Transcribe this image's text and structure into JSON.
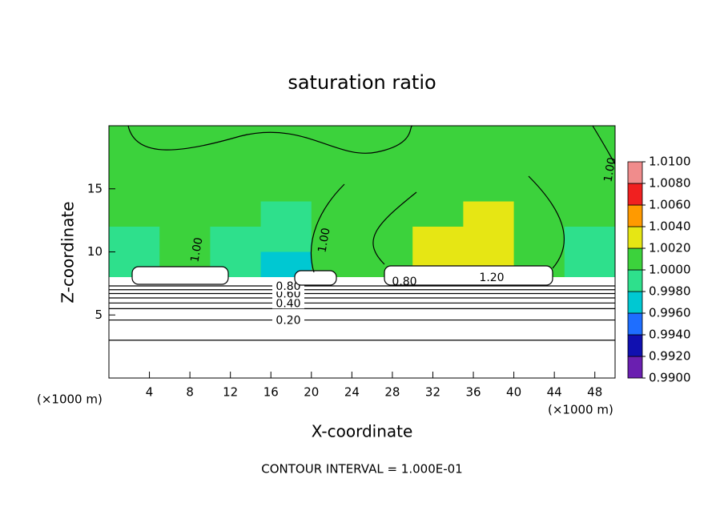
{
  "chart_data": {
    "type": "contour",
    "title": "saturation ratio",
    "x_label": "X-coordinate",
    "y_label": "Z-coordinate",
    "x_unit_label": "(×1000 m)",
    "x_unit_label_right": "(×1000 m)",
    "footnote": "CONTOUR INTERVAL = 1.000E-01",
    "xlim": [
      0,
      50
    ],
    "ylim": [
      0,
      20
    ],
    "xticks": [
      4,
      8,
      12,
      16,
      20,
      24,
      28,
      32,
      36,
      40,
      44,
      48
    ],
    "yticks": [
      5,
      10,
      15
    ],
    "x": [
      2.5,
      7.5,
      12.5,
      17.5,
      22.5,
      27.5,
      32.5,
      37.5,
      42.5,
      47.5
    ],
    "z_levels": [
      19,
      17,
      15,
      13,
      11,
      9,
      7,
      5,
      3,
      1
    ],
    "z": [
      [
        1.0005,
        1.0002,
        1.0006,
        1.0004,
        1.0003,
        1.0006,
        1.0008,
        1.0007,
        1.0005,
        1.0004
      ],
      [
        1.0006,
        1.0004,
        1.0005,
        1.0003,
        1.0005,
        1.0008,
        1.001,
        1.0011,
        1.0008,
        1.0002
      ],
      [
        1.0004,
        1.0003,
        1.0002,
        1.0001,
        1.0006,
        1.0012,
        1.0016,
        1.0018,
        1.001,
        1.0004
      ],
      [
        1.0002,
        1.0004,
        1.0001,
        0.9996,
        1.0006,
        1.001,
        1.0018,
        1.0022,
        1.0014,
        1.0002
      ],
      [
        0.9999,
        1.0008,
        0.9998,
        0.9994,
        1.0004,
        1.0008,
        1.0024,
        1.0026,
        1.0016,
        0.9998
      ],
      [
        0.9994,
        1.001,
        0.9994,
        0.9966,
        1.0002,
        1.0012,
        1.003,
        1.0028,
        1.0012,
        0.999
      ],
      [
        0.8,
        0.8,
        0.78,
        0.74,
        0.7,
        0.8,
        0.8,
        0.8,
        0.78,
        0.76
      ],
      [
        0.3,
        0.3,
        0.3,
        0.3,
        0.3,
        0.3,
        0.3,
        0.3,
        0.3,
        0.3
      ],
      [
        0.15,
        0.15,
        0.15,
        0.15,
        0.15,
        0.15,
        0.15,
        0.15,
        0.15,
        0.15
      ],
      [
        0.05,
        0.05,
        0.05,
        0.05,
        0.05,
        0.05,
        0.05,
        0.05,
        0.05,
        0.05
      ]
    ],
    "colorbar_ticks": [
      {
        "value": 0.99,
        "label": "0.9900"
      },
      {
        "value": 0.992,
        "label": "0.9920"
      },
      {
        "value": 0.994,
        "label": "0.9940"
      },
      {
        "value": 0.996,
        "label": "0.9960"
      },
      {
        "value": 0.998,
        "label": "0.9980"
      },
      {
        "value": 1.0,
        "label": "1.0000"
      },
      {
        "value": 1.002,
        "label": "1.0020"
      },
      {
        "value": 1.004,
        "label": "1.0040"
      },
      {
        "value": 1.006,
        "label": "1.0060"
      },
      {
        "value": 1.008,
        "label": "1.0080"
      },
      {
        "value": 1.01,
        "label": "1.0100"
      }
    ],
    "colorbar_colors": [
      "#6a1fb0",
      "#1010b0",
      "#1e6eff",
      "#00c8d2",
      "#2ee08c",
      "#3cd23c",
      "#e6e614",
      "#ff9a00",
      "#f02020",
      "#f08c8c"
    ],
    "contours": [
      {
        "level": 0.1,
        "label": null,
        "z": 3.0
      },
      {
        "level": 0.2,
        "label": "0.20",
        "z": 4.6
      },
      {
        "level": 0.3,
        "label": null,
        "z": 5.5
      },
      {
        "level": 0.4,
        "label": "0.40",
        "z": 5.95
      },
      {
        "level": 0.5,
        "label": null,
        "z": 6.35
      },
      {
        "level": 0.6,
        "label": "0.60",
        "z": 6.7
      },
      {
        "level": 0.7,
        "label": null,
        "z": 7.0
      },
      {
        "level": 0.8,
        "label": "0.80",
        "z": 7.3
      }
    ],
    "contour_labels": [
      "1.00",
      "1.00",
      "1.00",
      "1.20",
      "0.80"
    ]
  }
}
